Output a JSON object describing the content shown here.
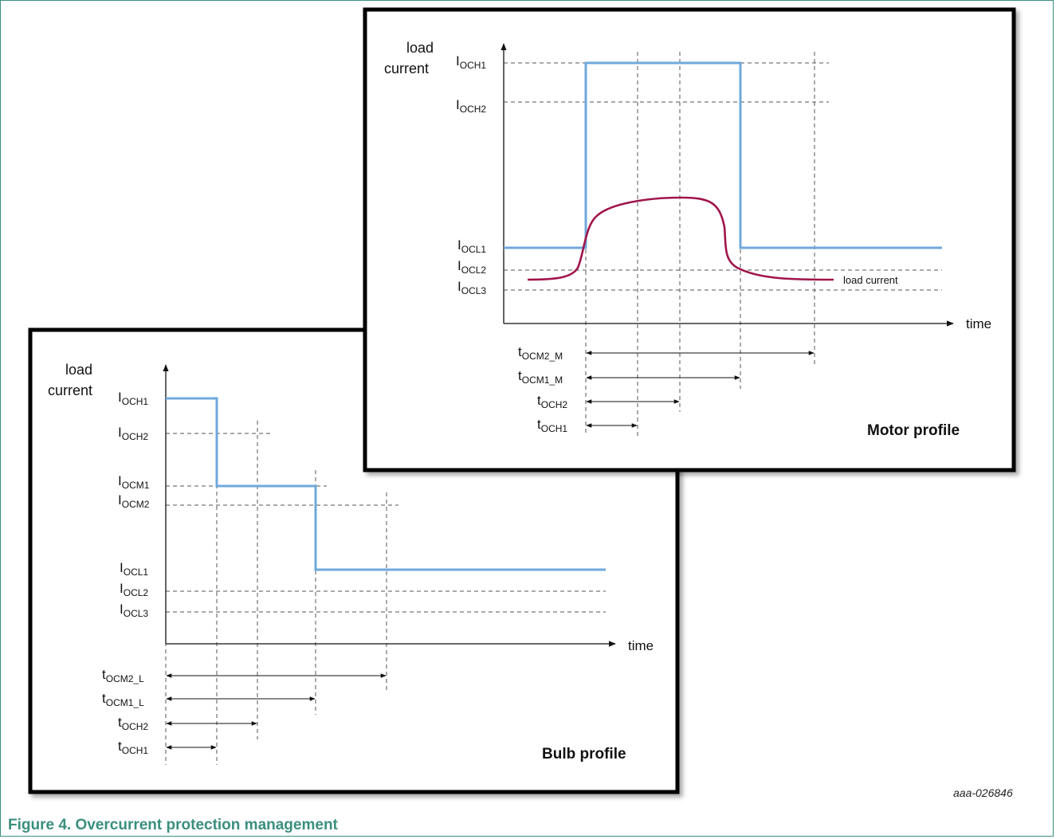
{
  "caption": "Figure 4. Overcurrent protection management",
  "figure_id": "aaa-026846",
  "colors": {
    "current_limit": "#6fa8dc",
    "load_current": "#a0154a",
    "caption": "#3a8f7e"
  },
  "bulb": {
    "title": "Bulb profile",
    "y_axis_line1": "load",
    "y_axis_line2": "current",
    "x_axis": "time",
    "levels": [
      {
        "main": "I",
        "sub": "OCH1"
      },
      {
        "main": "I",
        "sub": "OCH2"
      },
      {
        "main": "I",
        "sub": "OCM1"
      },
      {
        "main": "I",
        "sub": "OCM2"
      },
      {
        "main": "I",
        "sub": "OCL1"
      },
      {
        "main": "I",
        "sub": "OCL2"
      },
      {
        "main": "I",
        "sub": "OCL3"
      }
    ],
    "timers": [
      {
        "main": "t",
        "sub": "OCM2_L"
      },
      {
        "main": "t",
        "sub": "OCM1_L"
      },
      {
        "main": "t",
        "sub": "OCH2"
      },
      {
        "main": "t",
        "sub": "OCH1"
      }
    ]
  },
  "motor": {
    "title": "Motor profile",
    "y_axis_line1": "load",
    "y_axis_line2": "current",
    "x_axis": "time",
    "curve_label": "load current",
    "levels": [
      {
        "main": "I",
        "sub": "OCH1"
      },
      {
        "main": "I",
        "sub": "OCH2"
      },
      {
        "main": "I",
        "sub": "OCL1"
      },
      {
        "main": "I",
        "sub": "OCL2"
      },
      {
        "main": "I",
        "sub": "OCL3"
      }
    ],
    "timers": [
      {
        "main": "t",
        "sub": "OCM2_M"
      },
      {
        "main": "t",
        "sub": "OCM1_M"
      },
      {
        "main": "t",
        "sub": "OCH2"
      },
      {
        "main": "t",
        "sub": "OCH1"
      }
    ]
  }
}
